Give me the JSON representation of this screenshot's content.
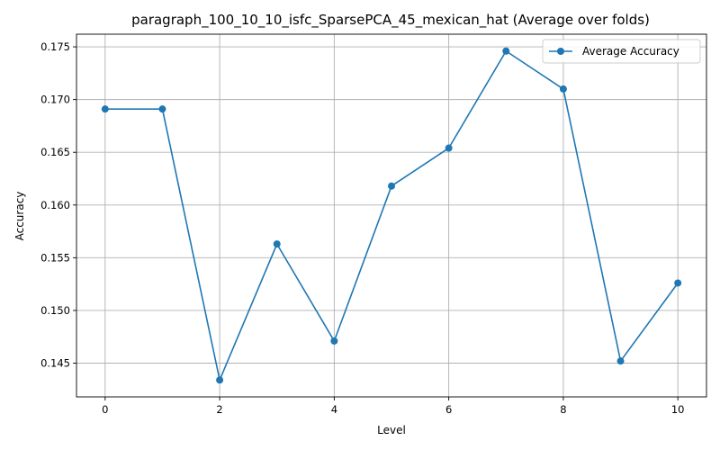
{
  "chart_data": {
    "type": "line",
    "title": "paragraph_100_10_10_isfc_SparsePCA_45_mexican_hat (Average over folds)",
    "xlabel": "Level",
    "ylabel": "Accuracy",
    "xlim": [
      -0.5,
      10.5
    ],
    "ylim": [
      0.1418,
      0.1762
    ],
    "xticks": [
      0,
      2,
      4,
      6,
      8,
      10
    ],
    "yticks": [
      0.145,
      0.15,
      0.155,
      0.16,
      0.165,
      0.17,
      0.175
    ],
    "grid": true,
    "legend_position": "top-right",
    "series": [
      {
        "name": "Average Accuracy",
        "color": "#1f77b4",
        "marker": "circle",
        "x": [
          0,
          1,
          2,
          3,
          4,
          5,
          6,
          7,
          8,
          9,
          10
        ],
        "y": [
          0.1691,
          0.1691,
          0.1434,
          0.1563,
          0.1471,
          0.1618,
          0.1654,
          0.1746,
          0.171,
          0.1452,
          0.1526
        ]
      }
    ]
  }
}
